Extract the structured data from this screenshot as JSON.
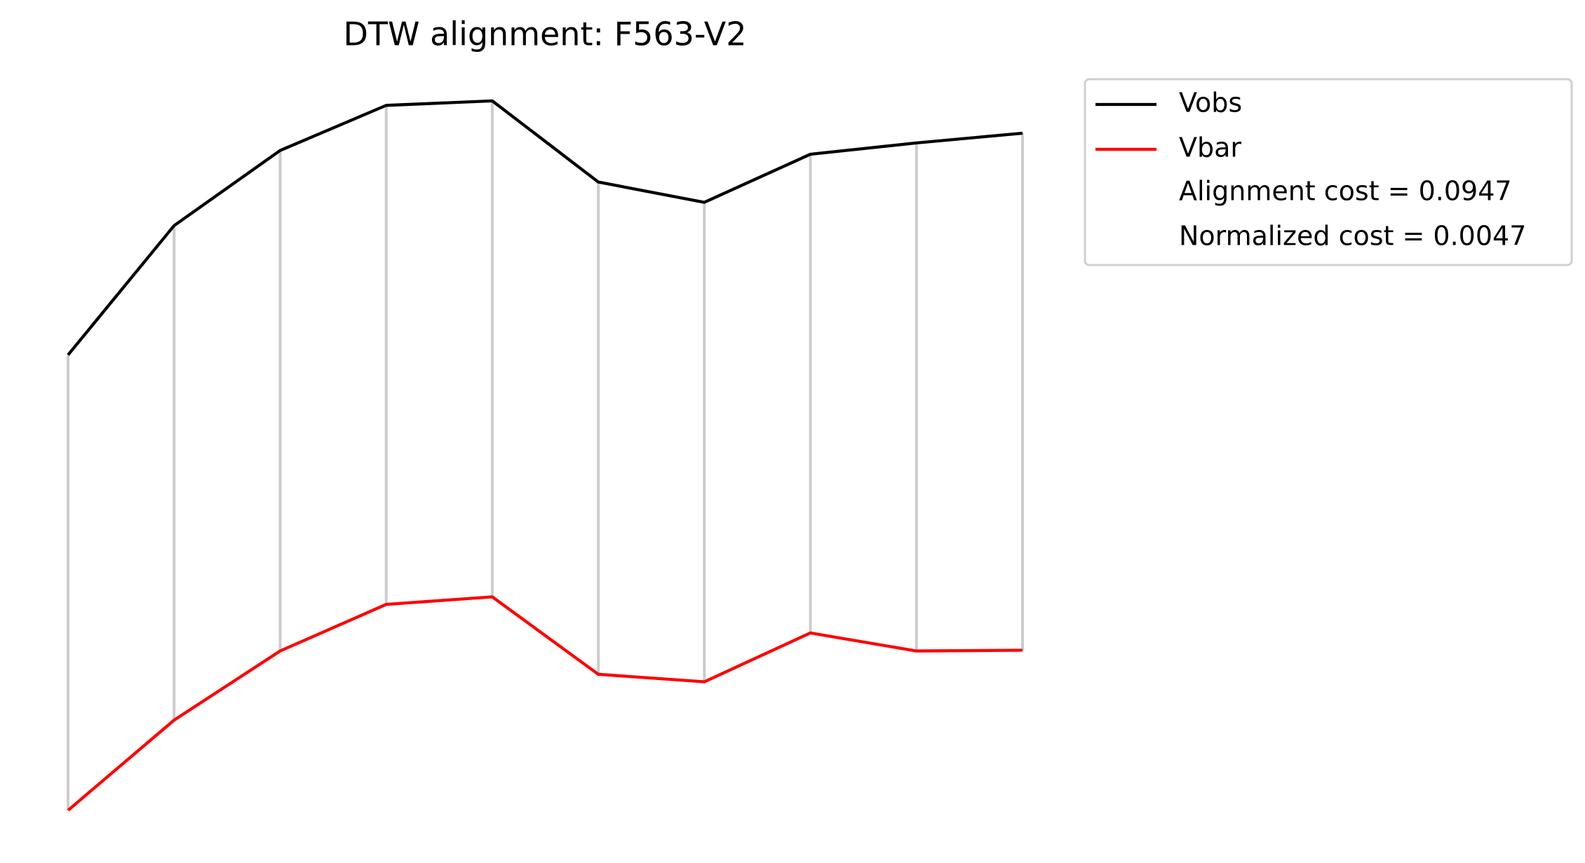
{
  "chart_data": {
    "type": "line",
    "title": "DTW alignment: F563-V2",
    "x": [
      0,
      1,
      2,
      3,
      4,
      5,
      6,
      7,
      8,
      9
    ],
    "xlim": [
      -0.45,
      9.45
    ],
    "ylim": [
      0,
      10
    ],
    "series": [
      {
        "name": "Vobs",
        "color": "#000000",
        "values": [
          6.36,
          8.08,
          9.08,
          9.68,
          9.74,
          8.66,
          8.39,
          9.03,
          9.18,
          9.31
        ]
      },
      {
        "name": "Vbar",
        "color": "#ff0000",
        "values": [
          0.3,
          1.5,
          2.42,
          3.04,
          3.14,
          2.11,
          2.01,
          2.66,
          2.42,
          2.43
        ]
      }
    ],
    "alignment_color": "#cccccc",
    "legend_notes": [
      "Alignment cost = 0.0947",
      "Normalized cost = 0.0047"
    ]
  }
}
